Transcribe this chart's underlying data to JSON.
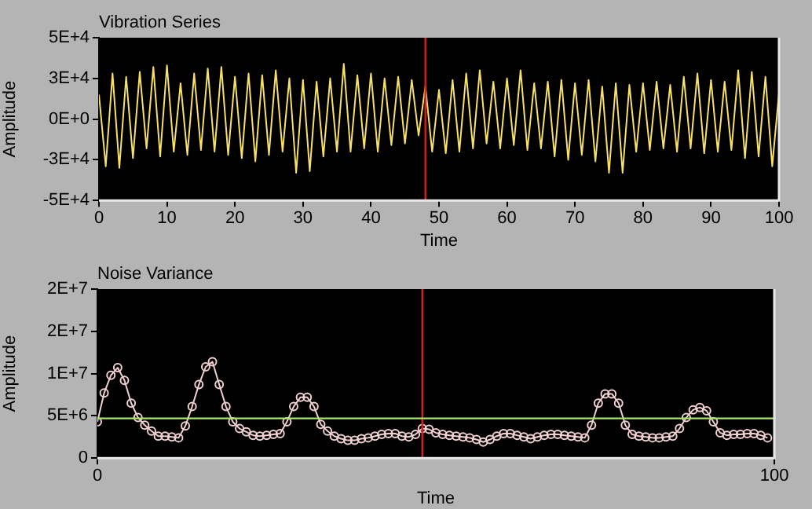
{
  "chart_data": [
    {
      "type": "line",
      "title": "Vibration Series",
      "xlabel": "Time",
      "ylabel": "Amplitude",
      "x": [
        0,
        1,
        2,
        3,
        4,
        5,
        6,
        7,
        8,
        9,
        10,
        11,
        12,
        13,
        14,
        15,
        16,
        17,
        18,
        19,
        20,
        21,
        22,
        23,
        24,
        25,
        26,
        27,
        28,
        29,
        30,
        31,
        32,
        33,
        34,
        35,
        36,
        37,
        38,
        39,
        40,
        41,
        42,
        43,
        44,
        45,
        46,
        47,
        48,
        49,
        50,
        51,
        52,
        53,
        54,
        55,
        56,
        57,
        58,
        59,
        60,
        61,
        62,
        63,
        64,
        65,
        66,
        67,
        68,
        69,
        70,
        71,
        72,
        73,
        74,
        75,
        76,
        77,
        78,
        79,
        80,
        81,
        82,
        83,
        84,
        85,
        86,
        87,
        88,
        89,
        90,
        91,
        92,
        93,
        94,
        95,
        96,
        97,
        98,
        99,
        100
      ],
      "series": [
        {
          "color": "#f8e068",
          "values": [
            15000,
            -29000,
            28000,
            -30000,
            26000,
            -24000,
            29000,
            -18000,
            32000,
            -23000,
            33000,
            -20000,
            22000,
            -22000,
            28000,
            -19000,
            31000,
            -20000,
            32000,
            -22000,
            26000,
            -24000,
            28000,
            -26000,
            27000,
            -22000,
            30000,
            -20000,
            25000,
            -33000,
            24000,
            -32000,
            23000,
            -23000,
            25000,
            -20000,
            34000,
            -20000,
            27000,
            -18000,
            28000,
            -20000,
            25000,
            -16000,
            26000,
            -15000,
            24000,
            -10000,
            20000,
            -20000,
            18000,
            -21000,
            24000,
            -20000,
            28000,
            -18000,
            30000,
            -15000,
            23000,
            -18000,
            25000,
            -16000,
            30000,
            -19000,
            22000,
            -18000,
            23000,
            -23000,
            24000,
            -25000,
            22000,
            -22000,
            24000,
            -26000,
            20000,
            -33000,
            22000,
            -33000,
            21000,
            -20000,
            22000,
            -19000,
            23000,
            -18000,
            21000,
            -20000,
            26000,
            -18000,
            28000,
            -21000,
            24000,
            -20000,
            23000,
            -19000,
            30000,
            -24000,
            29000,
            -23000,
            26000,
            -29000,
            16000
          ]
        }
      ],
      "xlim": [
        0,
        100
      ],
      "xticks": [
        0,
        10,
        20,
        30,
        40,
        50,
        60,
        70,
        80,
        90,
        100
      ],
      "ylim": [
        -50000,
        50000
      ],
      "yticks": [
        {
          "value": -50000,
          "label": "-5E+4"
        },
        {
          "value": -25000,
          "label": "-3E+4"
        },
        {
          "value": 0,
          "label": "0E+0"
        },
        {
          "value": 25000,
          "label": "3E+4"
        },
        {
          "value": 50000,
          "label": "5E+4"
        }
      ],
      "marker": "none",
      "ref_lines": [
        {
          "axis": "x",
          "value": 48,
          "color": "#d02020"
        }
      ]
    },
    {
      "type": "line",
      "title": "Noise Variance",
      "xlabel": "Time",
      "ylabel": "Amplitude",
      "x": [
        0,
        1,
        2,
        3,
        4,
        5,
        6,
        7,
        8,
        9,
        10,
        11,
        12,
        13,
        14,
        15,
        16,
        17,
        18,
        19,
        20,
        21,
        22,
        23,
        24,
        25,
        26,
        27,
        28,
        29,
        30,
        31,
        32,
        33,
        34,
        35,
        36,
        37,
        38,
        39,
        40,
        41,
        42,
        43,
        44,
        45,
        46,
        47,
        48,
        49,
        50,
        51,
        52,
        53,
        54,
        55,
        56,
        57,
        58,
        59,
        60,
        61,
        62,
        63,
        64,
        65,
        66,
        67,
        68,
        69,
        70,
        71,
        72,
        73,
        74,
        75,
        76,
        77,
        78,
        79,
        80,
        81,
        82,
        83,
        84,
        85,
        86,
        87,
        88,
        89,
        90,
        91,
        92,
        93,
        94,
        95,
        96,
        97,
        98,
        99
      ],
      "series": [
        {
          "color": "#f0d0d0",
          "values": [
            4300000,
            7700000,
            9800000,
            10700000,
            9200000,
            6500000,
            4800000,
            3900000,
            3200000,
            2600000,
            2600000,
            2500000,
            2400000,
            3800000,
            6100000,
            8700000,
            10800000,
            11400000,
            8700000,
            6100000,
            4300000,
            3500000,
            3100000,
            2700000,
            2600000,
            2700000,
            2800000,
            2900000,
            4300000,
            6100000,
            7200000,
            7200000,
            6100000,
            4000000,
            3200000,
            2600000,
            2300000,
            2100000,
            2100000,
            2300000,
            2400000,
            2600000,
            2800000,
            2900000,
            2900000,
            2600000,
            2500000,
            2800000,
            3500000,
            3400000,
            3000000,
            2800000,
            2700000,
            2600000,
            2500000,
            2400000,
            2200000,
            1900000,
            2200000,
            2600000,
            2900000,
            2900000,
            2700000,
            2500000,
            2300000,
            2500000,
            2700000,
            2800000,
            2800000,
            2700000,
            2600000,
            2500000,
            2400000,
            3900000,
            6500000,
            7600000,
            7600000,
            6500000,
            3900000,
            2800000,
            2600000,
            2500000,
            2400000,
            2400000,
            2500000,
            2600000,
            3500000,
            4800000,
            5700000,
            6000000,
            5600000,
            4300000,
            3000000,
            2700000,
            2800000,
            2800000,
            2900000,
            2900000,
            2700000,
            2400000
          ]
        }
      ],
      "xlim": [
        0,
        100
      ],
      "xticks": [
        0,
        100
      ],
      "ylim": [
        0,
        20000000
      ],
      "yticks": [
        {
          "value": 0,
          "label": "0"
        },
        {
          "value": 5000000,
          "label": "5E+6"
        },
        {
          "value": 10000000,
          "label": "1E+7"
        },
        {
          "value": 15000000,
          "label": "2E+7"
        },
        {
          "value": 20000000,
          "label": "2E+7"
        }
      ],
      "marker": "circle",
      "ref_lines": [
        {
          "axis": "x",
          "value": 48,
          "color": "#d02020"
        },
        {
          "axis": "y",
          "value": 4700000,
          "color": "#a8e868"
        }
      ]
    }
  ]
}
